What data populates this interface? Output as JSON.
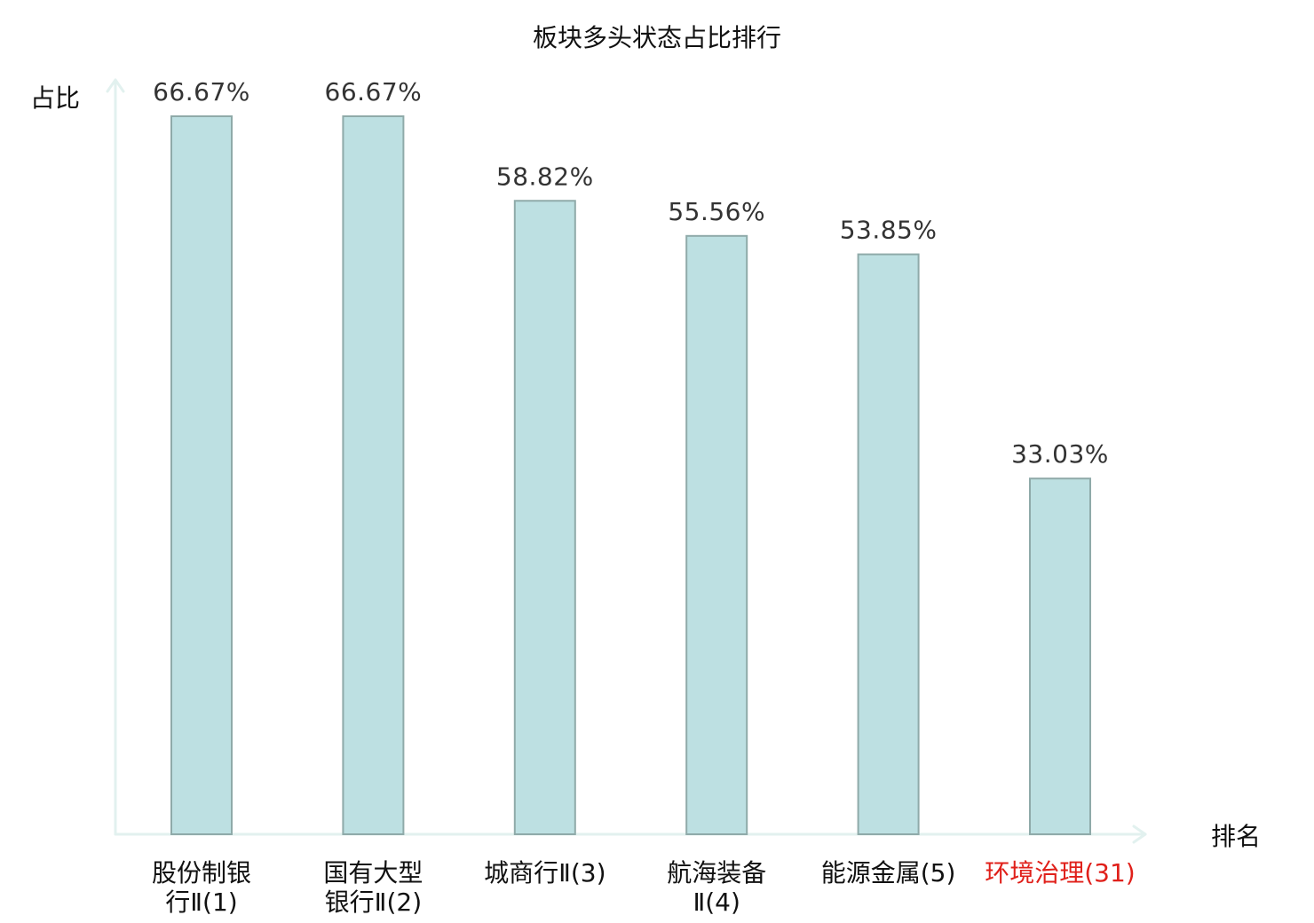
{
  "chart_data": {
    "type": "bar",
    "title": "板块多头状态占比排行",
    "ylabel": "占比",
    "xlabel": "排名",
    "ylim": [
      0,
      70
    ],
    "grid": false,
    "categories": [
      {
        "lines": [
          "股份制银",
          "行Ⅱ(1)"
        ],
        "highlight": false
      },
      {
        "lines": [
          "国有大型",
          "银行Ⅱ(2)"
        ],
        "highlight": false
      },
      {
        "lines": [
          "城商行Ⅱ(3)"
        ],
        "highlight": false
      },
      {
        "lines": [
          "航海装备",
          "Ⅱ(4)"
        ],
        "highlight": false
      },
      {
        "lines": [
          "能源金属(5)"
        ],
        "highlight": false
      },
      {
        "lines": [
          "环境治理(31)"
        ],
        "highlight": true
      }
    ],
    "values": [
      66.67,
      66.67,
      58.82,
      55.56,
      53.85,
      33.03
    ],
    "value_labels": [
      "66.67%",
      "66.67%",
      "58.82%",
      "55.56%",
      "53.85%",
      "33.03%"
    ]
  },
  "colors": {
    "bar_fill": "#bde0e2",
    "bar_stroke": "#8faaa9",
    "axis": "#e2f1ef",
    "text": "#111111",
    "value_text": "#333333",
    "highlight_text": "#e0201a"
  }
}
